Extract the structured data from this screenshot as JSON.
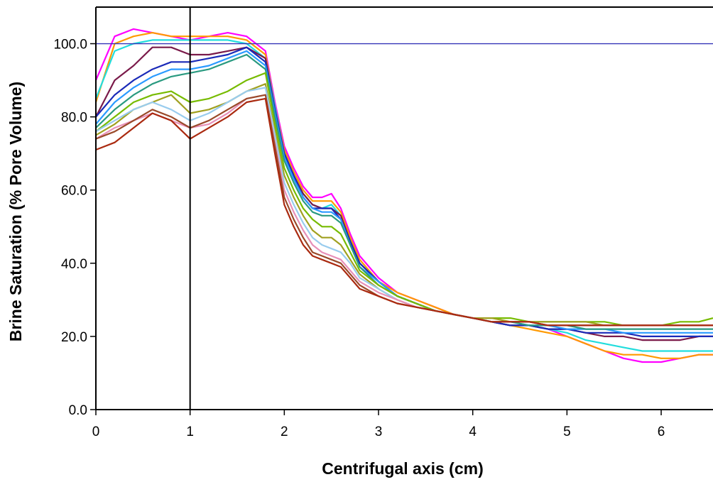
{
  "chart_data": {
    "type": "line",
    "title": "",
    "xlabel": "Centrifugal axis (cm)",
    "ylabel": "Brine Saturation (% Pore Volume)",
    "xlim": [
      0,
      6.55
    ],
    "ylim": [
      0,
      110
    ],
    "x_ticks": [
      "0",
      "1",
      "2",
      "3",
      "4",
      "5",
      "6"
    ],
    "y_ticks": [
      "0.0",
      "20.0",
      "40.0",
      "60.0",
      "80.0",
      "100.0"
    ],
    "grid": false,
    "legend": "none",
    "reference_lines": [
      {
        "orientation": "horizontal",
        "value": 100,
        "color": "#3535b8"
      },
      {
        "orientation": "vertical",
        "value": 1,
        "color": "#000000"
      }
    ],
    "x": [
      0,
      0.2,
      0.4,
      0.6,
      0.8,
      1.0,
      1.2,
      1.4,
      1.6,
      1.8,
      1.9,
      2.0,
      2.1,
      2.2,
      2.3,
      2.4,
      2.5,
      2.6,
      2.7,
      2.8,
      3.0,
      3.2,
      3.4,
      3.6,
      3.8,
      4.0,
      4.2,
      4.4,
      4.6,
      4.8,
      5.0,
      5.2,
      5.4,
      5.6,
      5.8,
      6.0,
      6.2,
      6.4,
      6.55
    ],
    "series": [
      {
        "color": "#ff00ff",
        "values": [
          90,
          102,
          104,
          103,
          102,
          101,
          102,
          103,
          102,
          98,
          84,
          72,
          66,
          61,
          58,
          58,
          59,
          55,
          48,
          42,
          36,
          32,
          30,
          28,
          26,
          25,
          24,
          23,
          23,
          22,
          20,
          18,
          16,
          14,
          13,
          13,
          14,
          15,
          15
        ]
      },
      {
        "color": "#ff9900",
        "values": [
          84,
          100,
          102,
          103,
          102,
          102,
          102,
          102,
          101,
          97,
          83,
          71,
          65,
          60,
          57,
          57,
          57,
          54,
          47,
          41,
          35,
          32,
          30,
          28,
          26,
          25,
          24,
          23,
          22,
          21,
          20,
          18,
          16,
          15,
          15,
          14,
          14,
          15,
          15
        ]
      },
      {
        "color": "#22dddd",
        "values": [
          85,
          98,
          100,
          101,
          101,
          101,
          101,
          101,
          100,
          96,
          83,
          70,
          64,
          59,
          56,
          55,
          56,
          53,
          46,
          40,
          35,
          31,
          29,
          27,
          26,
          25,
          24,
          23,
          23,
          22,
          21,
          19,
          18,
          17,
          16,
          16,
          16,
          16,
          16
        ]
      },
      {
        "color": "#7a1a4a",
        "values": [
          80,
          90,
          94,
          99,
          99,
          97,
          97,
          98,
          99,
          96,
          82,
          70,
          64,
          59,
          56,
          55,
          55,
          53,
          46,
          40,
          35,
          31,
          29,
          27,
          26,
          25,
          24,
          23,
          23,
          22,
          22,
          21,
          20,
          20,
          19,
          19,
          19,
          20,
          20
        ]
      },
      {
        "color": "#1a2ab8",
        "values": [
          80,
          86,
          90,
          93,
          95,
          95,
          96,
          97,
          99,
          95,
          82,
          70,
          64,
          58,
          55,
          55,
          55,
          52,
          46,
          40,
          35,
          31,
          29,
          27,
          26,
          25,
          24,
          23,
          23,
          22,
          22,
          21,
          21,
          21,
          20,
          20,
          20,
          20,
          20
        ]
      },
      {
        "color": "#2a9aff",
        "values": [
          78,
          84,
          88,
          91,
          93,
          93,
          94,
          96,
          98,
          94,
          81,
          69,
          63,
          58,
          55,
          54,
          54,
          52,
          45,
          39,
          35,
          31,
          29,
          27,
          26,
          25,
          24,
          24,
          23,
          23,
          22,
          22,
          22,
          21,
          21,
          21,
          21,
          21,
          21
        ]
      },
      {
        "color": "#2a9a80",
        "values": [
          77,
          82,
          86,
          89,
          91,
          92,
          93,
          95,
          97,
          93,
          80,
          68,
          62,
          57,
          54,
          53,
          53,
          51,
          45,
          39,
          34,
          31,
          29,
          27,
          26,
          25,
          24,
          24,
          23,
          23,
          23,
          22,
          22,
          22,
          22,
          22,
          22,
          22,
          22
        ]
      },
      {
        "color": "#77bb00",
        "values": [
          76,
          80,
          84,
          86,
          87,
          84,
          85,
          87,
          90,
          92,
          78,
          66,
          60,
          55,
          52,
          50,
          50,
          48,
          43,
          38,
          34,
          31,
          29,
          27,
          26,
          25,
          25,
          25,
          24,
          24,
          24,
          24,
          24,
          23,
          23,
          23,
          24,
          24,
          25
        ]
      },
      {
        "color": "#a0a020",
        "values": [
          75,
          78,
          82,
          84,
          86,
          81,
          82,
          84,
          87,
          89,
          76,
          64,
          58,
          53,
          49,
          47,
          47,
          45,
          41,
          37,
          33,
          30,
          28,
          27,
          26,
          25,
          25,
          24,
          24,
          24,
          24,
          24,
          23,
          23,
          23,
          23,
          23,
          23,
          23
        ]
      },
      {
        "color": "#99ccee",
        "values": [
          76,
          79,
          82,
          84,
          82,
          79,
          81,
          84,
          87,
          88,
          75,
          62,
          56,
          51,
          47,
          45,
          44,
          43,
          40,
          36,
          33,
          30,
          28,
          27,
          26,
          25,
          24,
          24,
          24,
          23,
          23,
          23,
          23,
          23,
          23,
          23,
          23,
          23,
          23
        ]
      },
      {
        "color": "#e890b8",
        "values": [
          74,
          77,
          79,
          81,
          79,
          77,
          78,
          81,
          85,
          86,
          73,
          60,
          54,
          49,
          45,
          43,
          42,
          41,
          38,
          35,
          32,
          30,
          28,
          27,
          26,
          25,
          24,
          24,
          24,
          23,
          23,
          23,
          23,
          23,
          23,
          23,
          23,
          23,
          23
        ]
      },
      {
        "color": "#9a4a2a",
        "values": [
          74,
          76,
          79,
          82,
          80,
          77,
          79,
          82,
          85,
          86,
          72,
          58,
          52,
          47,
          43,
          42,
          41,
          40,
          37,
          34,
          31,
          29,
          28,
          27,
          26,
          25,
          24,
          24,
          24,
          23,
          23,
          23,
          23,
          23,
          23,
          23,
          23,
          23,
          23
        ]
      },
      {
        "color": "#aa2a10",
        "values": [
          71,
          73,
          77,
          81,
          79,
          74,
          77,
          80,
          84,
          85,
          70,
          56,
          50,
          45,
          42,
          41,
          40,
          39,
          36,
          33,
          31,
          29,
          28,
          27,
          26,
          25,
          24,
          24,
          24,
          23,
          23,
          23,
          23,
          23,
          23,
          23,
          23,
          23,
          23
        ]
      }
    ]
  }
}
